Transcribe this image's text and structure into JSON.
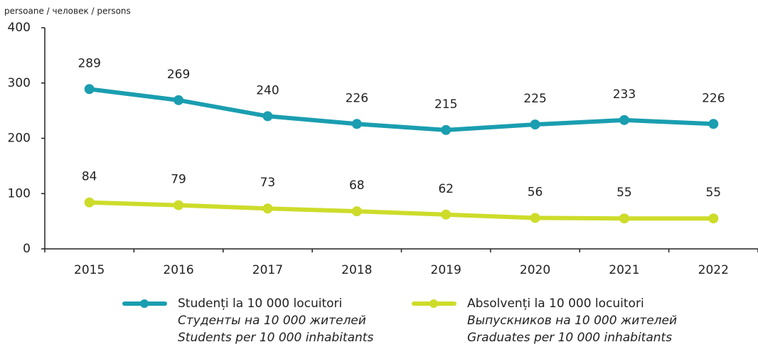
{
  "chart_data": {
    "type": "line",
    "ylabel": "persoane / человек / persons",
    "categories": [
      "2015",
      "2016",
      "2017",
      "2018",
      "2019",
      "2020",
      "2021",
      "2022"
    ],
    "series": [
      {
        "name": "Studenți la 10 000 locuitori",
        "name_ru": "Студенты на 10 000 жителей",
        "name_en": "Students per 10 000 inhabitants",
        "color": "#1a9eb0",
        "values": [
          289,
          269,
          240,
          226,
          215,
          225,
          233,
          226
        ]
      },
      {
        "name": "Absolvenți la 10 000 locuitori",
        "name_ru": "Выпускников на 10 000 жителей",
        "name_en": "Graduates per 10 000 inhabitants",
        "color": "#cddc2a",
        "values": [
          84,
          79,
          73,
          68,
          62,
          56,
          55,
          55
        ]
      }
    ],
    "ylim": [
      0,
      400
    ],
    "yticks": [
      0,
      100,
      200,
      300,
      400
    ],
    "grid": false
  }
}
